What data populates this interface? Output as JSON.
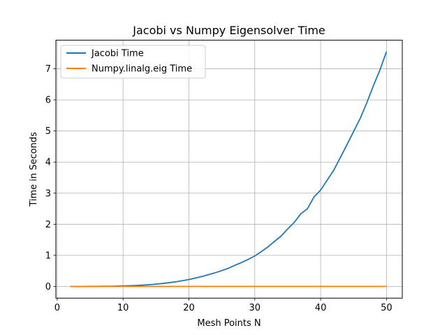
{
  "chart_data": {
    "type": "line",
    "title": "Jacobi vs Numpy Eigensolver Time",
    "xlabel": "Mesh Points N",
    "ylabel": "Time in Seconds",
    "xlim": [
      -0.2,
      52.4
    ],
    "ylim": [
      -0.377,
      7.92
    ],
    "xticks": [
      0,
      10,
      20,
      30,
      40,
      50
    ],
    "yticks": [
      0,
      1,
      2,
      3,
      4,
      5,
      6,
      7
    ],
    "grid": true,
    "legend_position": "top-left",
    "series": [
      {
        "name": "Jacobi Time",
        "color": "#1f77b4",
        "x": [
          2,
          3,
          4,
          5,
          6,
          7,
          8,
          9,
          10,
          11,
          12,
          13,
          14,
          15,
          16,
          17,
          18,
          19,
          20,
          21,
          22,
          23,
          24,
          25,
          26,
          27,
          28,
          29,
          30,
          31,
          32,
          33,
          34,
          35,
          36,
          37,
          38,
          39,
          40,
          41,
          42,
          43,
          44,
          45,
          46,
          47,
          48,
          49,
          50
        ],
        "y": [
          0.0,
          0.0,
          0.001,
          0.002,
          0.003,
          0.005,
          0.007,
          0.011,
          0.016,
          0.023,
          0.032,
          0.043,
          0.057,
          0.074,
          0.095,
          0.12,
          0.149,
          0.183,
          0.222,
          0.27,
          0.32,
          0.38,
          0.44,
          0.51,
          0.585,
          0.68,
          0.77,
          0.87,
          0.98,
          1.12,
          1.27,
          1.45,
          1.62,
          1.85,
          2.06,
          2.34,
          2.5,
          2.88,
          3.1,
          3.42,
          3.74,
          4.15,
          4.56,
          4.98,
          5.4,
          5.9,
          6.45,
          6.96,
          7.55
        ]
      },
      {
        "name": "Numpy.linalg.eig Time",
        "color": "#ff7f0e",
        "x": [
          2,
          5,
          10,
          15,
          20,
          25,
          30,
          35,
          40,
          45,
          50
        ],
        "y": [
          0.0,
          0.0,
          0.0,
          0.0,
          0.0,
          0.0,
          0.0,
          0.0,
          0.0,
          0.0,
          0.0
        ]
      }
    ]
  }
}
